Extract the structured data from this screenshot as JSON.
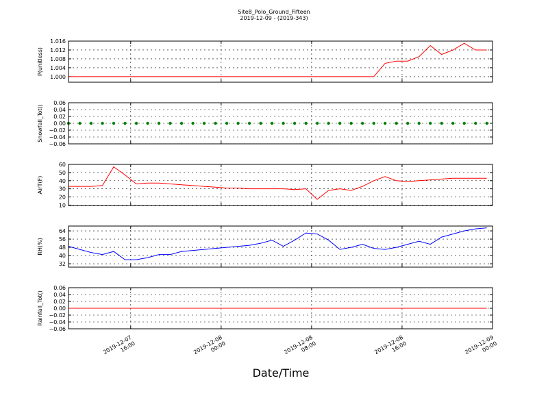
{
  "chart_data": {
    "type": "line",
    "title": "Site8_Polo_Ground_Fifteen",
    "subtitle": "2019-12-09 - (2019-343)",
    "xlabel": "Date/Time",
    "xlim": [
      "2019-12-07 10:30",
      "2019-12-09 00:00"
    ],
    "xticks": [
      "2019-12-07 16:00",
      "2019-12-08 00:00",
      "2019-12-08 08:00",
      "2019-12-08 16:00",
      "2019-12-09 00:00"
    ],
    "grid": true,
    "x": [
      "2019-12-07 10:30",
      "2019-12-07 11:30",
      "2019-12-07 12:30",
      "2019-12-07 13:30",
      "2019-12-07 14:30",
      "2019-12-07 15:30",
      "2019-12-07 16:30",
      "2019-12-07 17:30",
      "2019-12-07 18:30",
      "2019-12-07 19:30",
      "2019-12-07 20:30",
      "2019-12-07 21:30",
      "2019-12-07 22:30",
      "2019-12-07 23:30",
      "2019-12-08 00:30",
      "2019-12-08 01:30",
      "2019-12-08 02:30",
      "2019-12-08 03:30",
      "2019-12-08 04:30",
      "2019-12-08 05:30",
      "2019-12-08 06:30",
      "2019-12-08 07:30",
      "2019-12-08 08:30",
      "2019-12-08 09:30",
      "2019-12-08 10:30",
      "2019-12-08 11:30",
      "2019-12-08 12:30",
      "2019-12-08 13:30",
      "2019-12-08 14:30",
      "2019-12-08 15:30",
      "2019-12-08 16:30",
      "2019-12-08 17:30",
      "2019-12-08 18:30",
      "2019-12-08 19:30",
      "2019-12-08 20:30",
      "2019-12-08 21:30",
      "2019-12-08 22:30",
      "2019-12-08 23:30"
    ],
    "panels": [
      {
        "type": "line",
        "ylabel": "P(unitless)",
        "color": "#ff0000",
        "ylim": [
          0.9975,
          1.016
        ],
        "yticks": [
          {
            "value": 1.0,
            "label": "1.000"
          },
          {
            "value": 1.004,
            "label": "1.004"
          },
          {
            "value": 1.008,
            "label": "1.008"
          },
          {
            "value": 1.012,
            "label": "1.012"
          },
          {
            "value": 1.016,
            "label": "1.016"
          }
        ],
        "values": [
          1,
          1,
          1,
          1,
          1,
          1,
          1,
          1,
          1,
          1,
          1,
          1,
          1,
          1,
          1,
          1,
          1,
          1,
          1,
          1,
          1,
          1,
          1,
          1,
          1,
          1,
          1,
          1,
          1.006,
          1.007,
          1.007,
          1.009,
          1.014,
          1.01,
          1.012,
          1.015,
          1.012,
          1.012
        ]
      },
      {
        "type": "scatter",
        "ylabel": "Snowfall_Tot()",
        "color": "#008000",
        "ylim": [
          -0.06,
          0.06
        ],
        "yticks": [
          {
            "value": -0.06,
            "label": "−0.06"
          },
          {
            "value": -0.04,
            "label": "−0.04"
          },
          {
            "value": -0.02,
            "label": "−0.02"
          },
          {
            "value": 0,
            "label": "0.00"
          },
          {
            "value": 0.02,
            "label": "0.02"
          },
          {
            "value": 0.04,
            "label": "0.04"
          },
          {
            "value": 0.06,
            "label": "0.06"
          }
        ],
        "values": [
          0,
          0,
          0,
          0,
          0,
          0,
          0,
          0,
          0,
          0,
          0,
          0,
          0,
          0,
          0,
          0,
          0,
          0,
          0,
          0,
          0,
          0,
          0,
          0,
          0,
          0,
          0,
          0,
          0,
          0,
          0,
          0,
          0,
          0,
          0,
          0,
          0,
          0
        ]
      },
      {
        "type": "line",
        "ylabel": "AirT(F)",
        "color": "#ff0000",
        "ylim": [
          9.5,
          60
        ],
        "yticks": [
          10,
          20,
          30,
          40,
          50,
          60
        ],
        "values": [
          33,
          33,
          33,
          34,
          57,
          47,
          36,
          37,
          37,
          36,
          35,
          34,
          33,
          32,
          31,
          31,
          30,
          30,
          30,
          30,
          29,
          30,
          17,
          28,
          30,
          28,
          33,
          40,
          45,
          40,
          39,
          40,
          41,
          42,
          43,
          43,
          43,
          43
        ]
      },
      {
        "type": "line",
        "ylabel": "RH(%)",
        "color": "#0000ff",
        "ylim": [
          28.7,
          68.7
        ],
        "yticks": [
          32,
          40,
          48,
          56,
          64
        ],
        "values": [
          49,
          46,
          43,
          41,
          44,
          36,
          36,
          38,
          41,
          41,
          44,
          45,
          46,
          47,
          48,
          49,
          50,
          52,
          55,
          49,
          55,
          62,
          61,
          55,
          46,
          48,
          51,
          47,
          46,
          48,
          51,
          54,
          51,
          58,
          61,
          64,
          66,
          67
        ]
      },
      {
        "type": "line",
        "ylabel": "Rainfall_Tot()",
        "color": "#ff0000",
        "ylim": [
          -0.06,
          0.06
        ],
        "yticks": [
          {
            "value": -0.06,
            "label": "−0.06"
          },
          {
            "value": -0.04,
            "label": "−0.04"
          },
          {
            "value": -0.02,
            "label": "−0.02"
          },
          {
            "value": 0,
            "label": "0.00"
          },
          {
            "value": 0.02,
            "label": "0.02"
          },
          {
            "value": 0.04,
            "label": "0.04"
          },
          {
            "value": 0.06,
            "label": "0.06"
          }
        ],
        "values": [
          0,
          0,
          0,
          0,
          0,
          0,
          0,
          0,
          0,
          0,
          0,
          0,
          0,
          0,
          0,
          0,
          0,
          0,
          0,
          0,
          0,
          0,
          0,
          0,
          0,
          0,
          0,
          0,
          0,
          0,
          0,
          0,
          0,
          0,
          0,
          0,
          0,
          0
        ]
      }
    ]
  }
}
